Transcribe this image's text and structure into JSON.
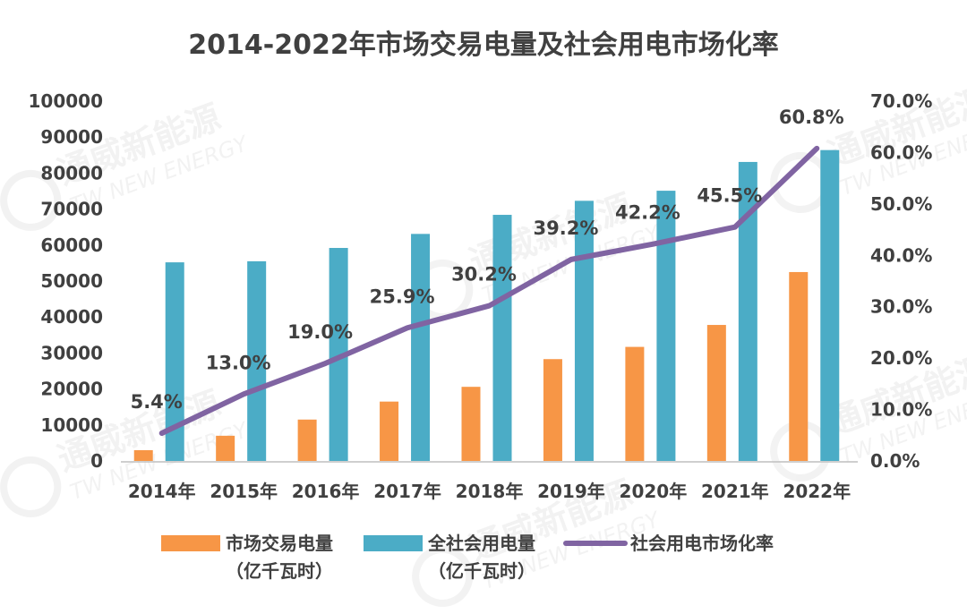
{
  "chart_data": {
    "type": "bar",
    "title": "2014-2022年市场交易电量及社会用电市场化率",
    "categories": [
      "2014年",
      "2015年",
      "2016年",
      "2017年",
      "2018年",
      "2019年",
      "2020年",
      "2021年",
      "2022年"
    ],
    "series": [
      {
        "name": "市场交易电量",
        "name_line2": "（亿千瓦时）",
        "kind": "bar",
        "axis": "left",
        "color": "#f79646",
        "values": [
          3000,
          7000,
          11500,
          16500,
          20600,
          28300,
          31700,
          37800,
          52500
        ]
      },
      {
        "name": "全社会用电量",
        "name_line2": "（亿千瓦时）",
        "kind": "bar",
        "axis": "left",
        "color": "#4bacc6",
        "values": [
          55200,
          55500,
          59200,
          63100,
          68400,
          72300,
          75100,
          83100,
          86400
        ]
      },
      {
        "name": "社会用电市场化率",
        "kind": "line",
        "axis": "right",
        "color": "#8064a2",
        "values": [
          5.4,
          13.0,
          19.0,
          25.9,
          30.2,
          39.2,
          42.2,
          45.5,
          60.8
        ],
        "labels": [
          "5.4%",
          "13.0%",
          "19.0%",
          "25.9%",
          "30.2%",
          "39.2%",
          "42.2%",
          "45.5%",
          "60.8%"
        ]
      }
    ],
    "y_left": {
      "min": 0,
      "max": 100000,
      "ticks": [
        "0",
        "10000",
        "20000",
        "30000",
        "40000",
        "50000",
        "60000",
        "70000",
        "80000",
        "90000",
        "100000"
      ]
    },
    "y_right": {
      "min": 0,
      "max": 70,
      "ticks": [
        "0.0%",
        "10.0%",
        "20.0%",
        "30.0%",
        "40.0%",
        "50.0%",
        "60.0%",
        "70.0%"
      ]
    },
    "grid": false,
    "legend_position": "bottom"
  },
  "watermark": {
    "line1": "通威新能源",
    "line2": "TW NEW ENERGY"
  }
}
